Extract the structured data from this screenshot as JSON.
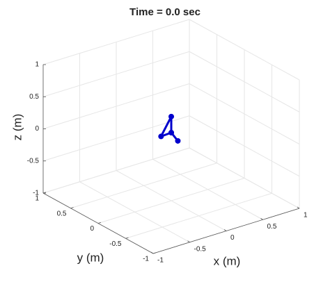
{
  "chart_data": {
    "type": "line3d",
    "title": "Time = 0.0 sec",
    "xlabel": "x (m)",
    "ylabel": "y (m)",
    "zlabel": "z (m)",
    "x": [
      0.09,
      0,
      -0.14,
      0,
      0
    ],
    "y": [
      0,
      0,
      0,
      0,
      0
    ],
    "z": [
      -0.1,
      0.06,
      0.05,
      0.31,
      0.06
    ],
    "color": "#0000cc",
    "xlim": [
      -1,
      1
    ],
    "ylim": [
      -1,
      1
    ],
    "zlim": [
      -1,
      1
    ],
    "xticks": [
      -1,
      -0.5,
      0,
      0.5,
      1
    ],
    "yticks": [
      -1,
      -0.5,
      0,
      0.5,
      1
    ],
    "zticks": [
      -1,
      -0.5,
      0,
      0.5,
      1
    ],
    "grid": true
  }
}
